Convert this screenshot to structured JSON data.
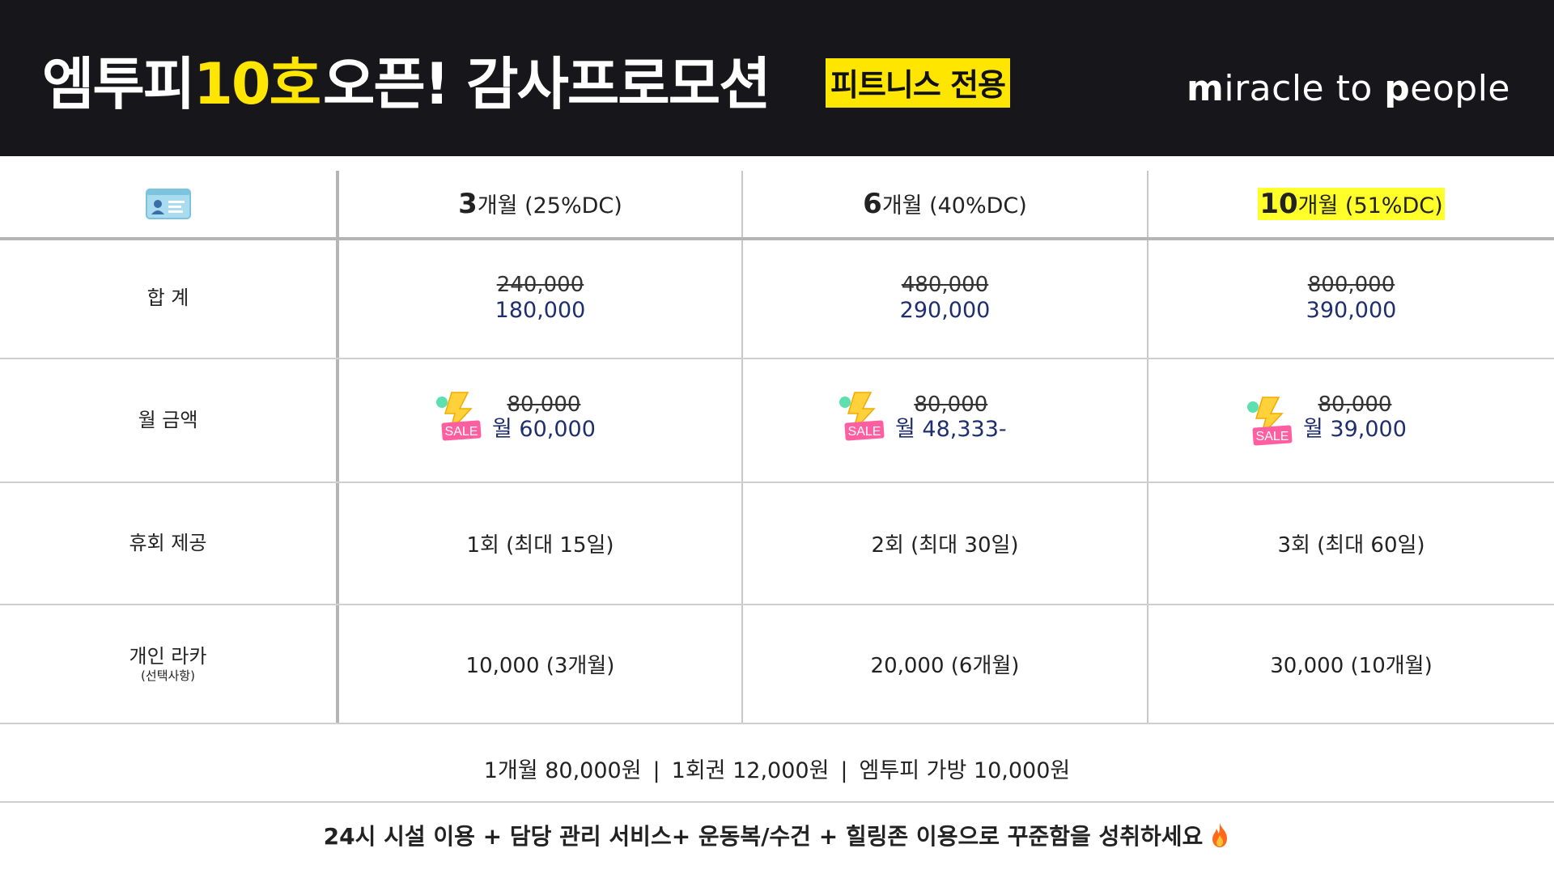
{
  "header": {
    "title_prefix": "엠투피",
    "title_highlight": "10호",
    "title_suffix": "오픈! 감사프로모션",
    "badge": "피트니스 전용",
    "brand_m": "m",
    "brand_iracle": "iracle to ",
    "brand_p": "p",
    "brand_eople": "eople",
    "colors": {
      "background": "#17171b",
      "accent": "#ffe600"
    }
  },
  "table": {
    "header_icon": "id-card-icon",
    "plans": [
      {
        "months": "3",
        "unit": "개월 (25%DC)",
        "highlight": false
      },
      {
        "months": "6",
        "unit": "개월 (40%DC)",
        "highlight": false
      },
      {
        "months": "10",
        "unit": "개월 (51%DC)",
        "highlight": true
      }
    ],
    "rows": {
      "total": {
        "label": "합 계",
        "values": [
          {
            "original": "240,000",
            "discounted": "180,000"
          },
          {
            "original": "480,000",
            "discounted": "290,000"
          },
          {
            "original": "800,000",
            "discounted": "390,000"
          }
        ]
      },
      "monthly": {
        "label": "월 금액",
        "sale_text": "SALE",
        "values": [
          {
            "original": "80,000",
            "discounted": "월 60,000"
          },
          {
            "original": "80,000",
            "discounted": "월 48,333-"
          },
          {
            "original": "80,000",
            "discounted": "월 39,000"
          }
        ]
      },
      "pause": {
        "label": "휴회 제공",
        "values": [
          "1회 (최대 15일)",
          "2회 (최대 30일)",
          "3회 (최대 60일)"
        ]
      },
      "locker": {
        "label": "개인 라카",
        "sublabel": "(선택사항)",
        "values": [
          "10,000 (3개월)",
          "20,000 (6개월)",
          "30,000 (10개월)"
        ]
      }
    }
  },
  "footer": {
    "prices": [
      "1개월 80,000원",
      "1회권 12,000원",
      "엠투피 가방 10,000원"
    ],
    "separator": "|",
    "tagline": "24시 시설 이용 + 담당 관리 서비스+ 운동복/수건 + 힐링존 이용으로 꾸준함을 성취하세요",
    "tagline_icon": "fire-icon"
  }
}
